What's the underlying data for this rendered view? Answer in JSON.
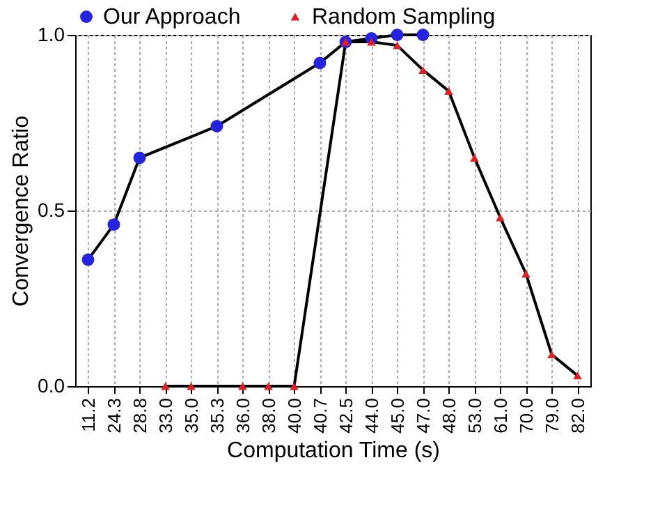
{
  "chart_data": {
    "type": "line",
    "xlabel": "Computation Time (s)",
    "ylabel": "Convergence Ratio",
    "categories": [
      "11.2",
      "24.3",
      "28.8",
      "33.0",
      "35.0",
      "35.3",
      "36.0",
      "38.0",
      "40.0",
      "40.7",
      "42.5",
      "44.0",
      "45.0",
      "47.0",
      "48.0",
      "53.0",
      "61.0",
      "70.0",
      "79.0",
      "82.0"
    ],
    "series": [
      {
        "name": "Our Approach",
        "color": "#2323e0",
        "marker": "circle",
        "values": [
          0.36,
          0.46,
          0.65,
          null,
          null,
          0.74,
          null,
          null,
          null,
          0.92,
          0.98,
          0.99,
          1.0,
          1.0,
          null,
          null,
          null,
          null,
          null,
          null
        ]
      },
      {
        "name": "Random Sampling",
        "color": "#e02020",
        "marker": "triangle",
        "values": [
          null,
          null,
          null,
          0,
          0,
          null,
          0,
          0,
          0,
          null,
          0.98,
          0.98,
          0.97,
          0.9,
          0.84,
          0.65,
          0.48,
          0.32,
          0.09,
          0.03
        ]
      }
    ],
    "ylim": [
      0,
      1
    ],
    "yticks": [
      {
        "value": 0,
        "label": "0.0"
      },
      {
        "value": 0.5,
        "label": "0.5"
      },
      {
        "value": 1,
        "label": "1.0"
      }
    ],
    "grid": true,
    "legend": "top",
    "line_style": "solid"
  }
}
